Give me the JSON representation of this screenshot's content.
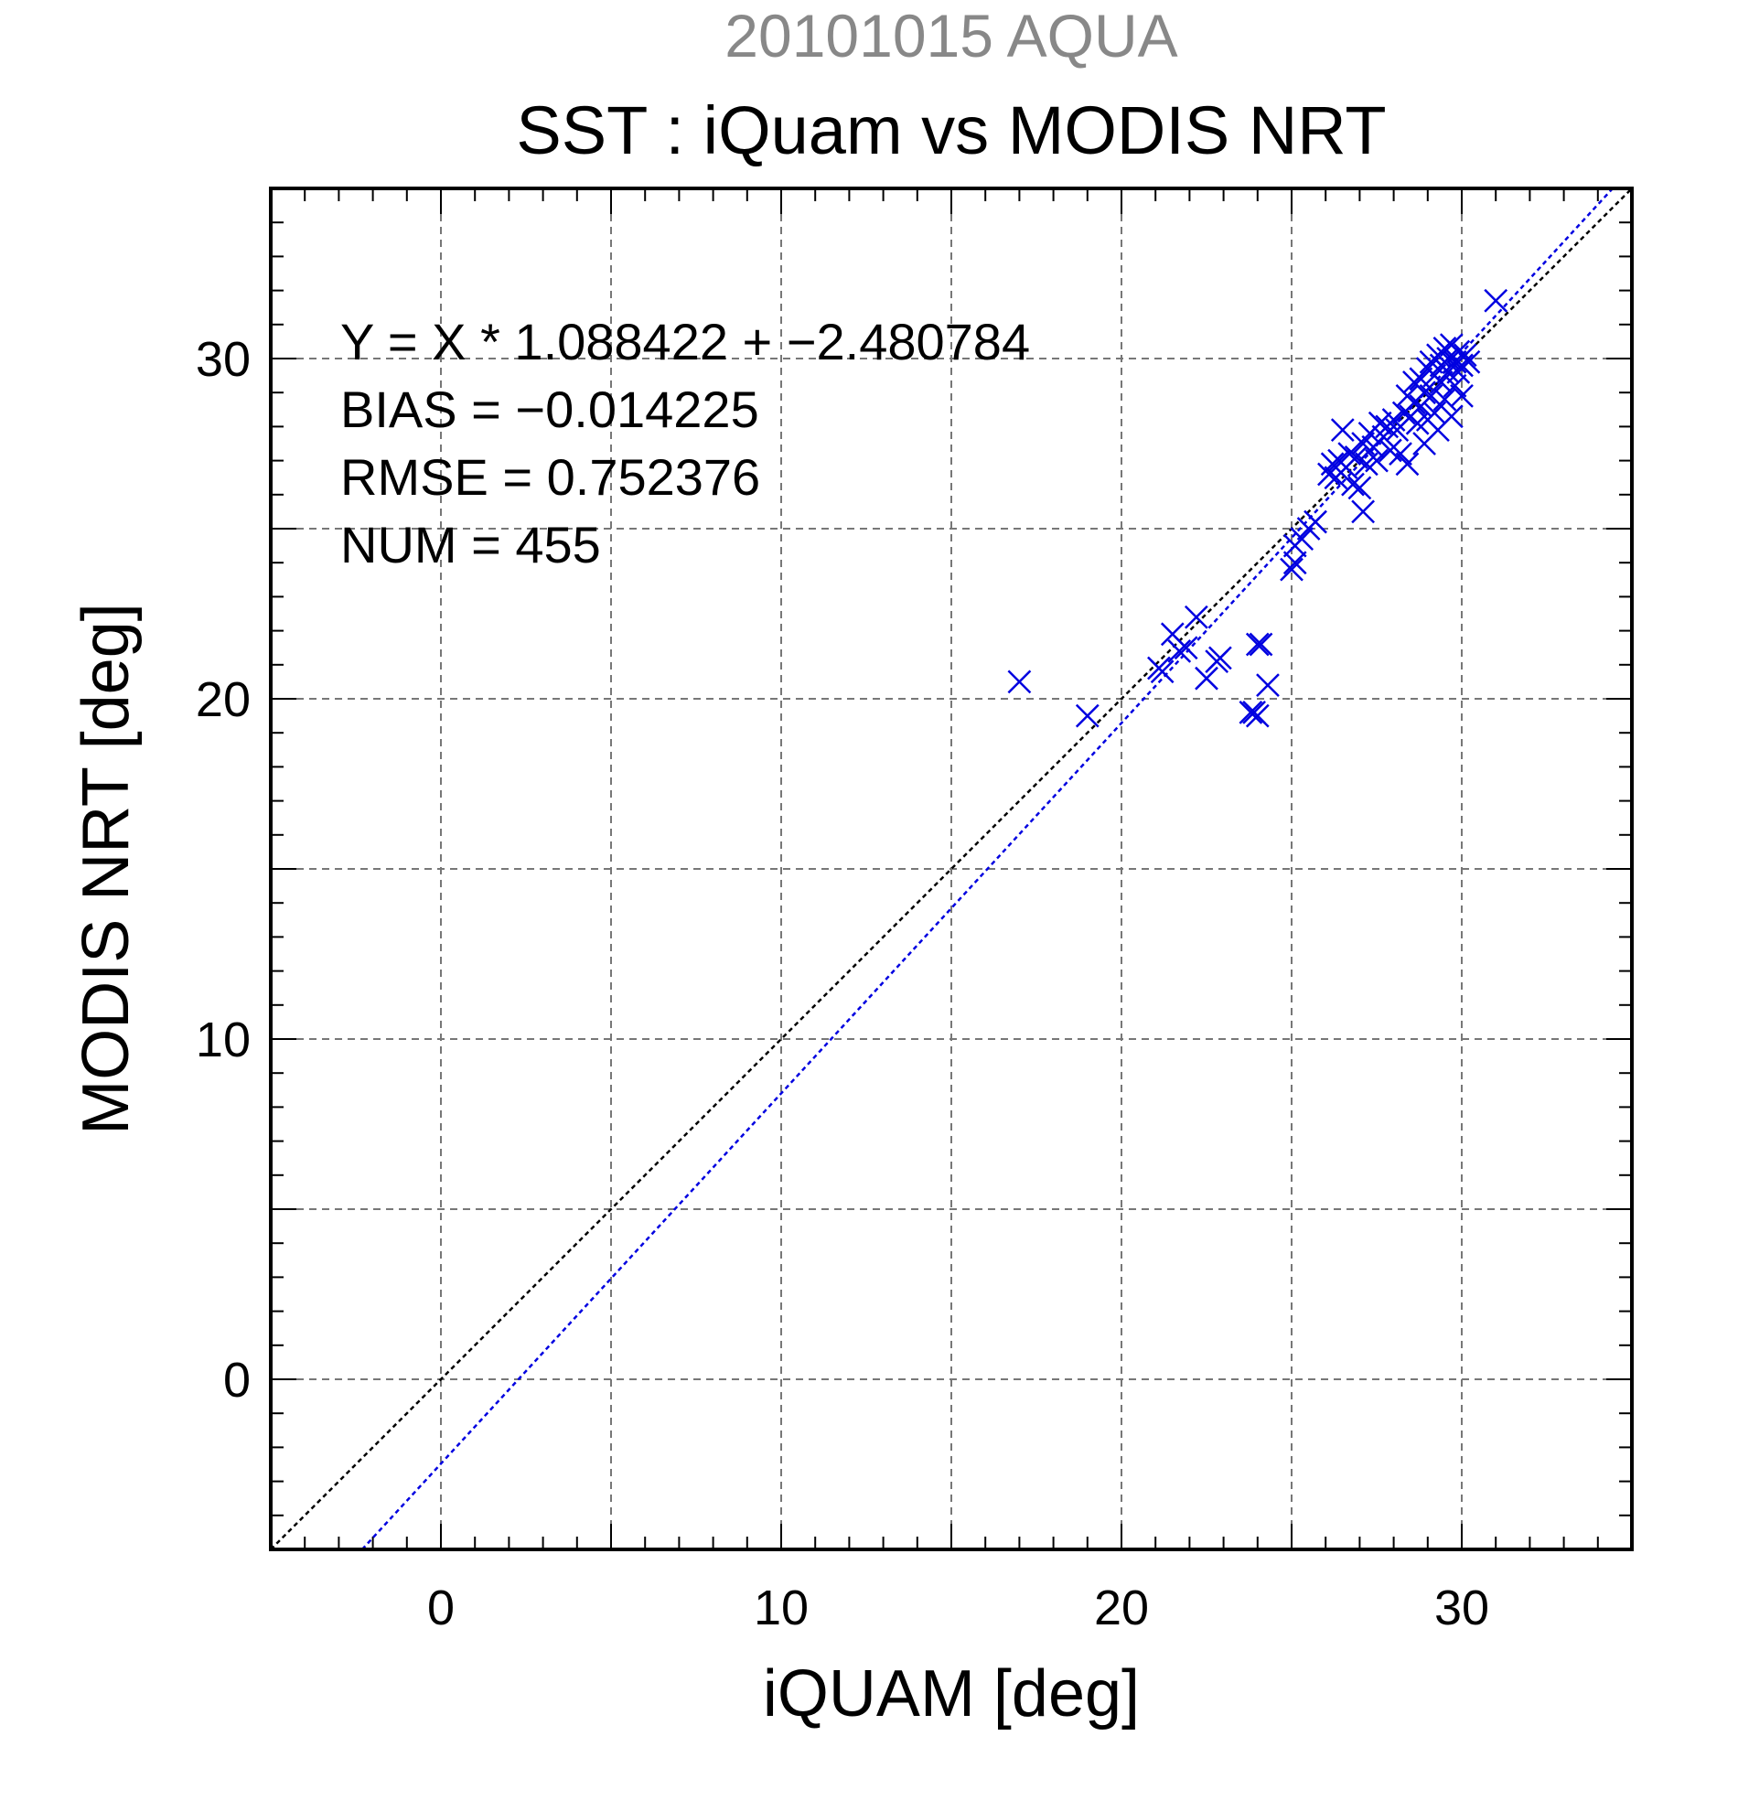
{
  "chart_data": {
    "type": "scatter",
    "title": "SST : iQuam vs MODIS NRT",
    "subtitle": "20101015 AQUA",
    "xlabel": "iQUAM [deg]",
    "ylabel": "MODIS NRT [deg]",
    "xlim": [
      -5,
      35
    ],
    "ylim": [
      -5,
      35
    ],
    "x_ticks": [
      0,
      10,
      20,
      30
    ],
    "y_ticks": [
      0,
      10,
      20,
      30
    ],
    "grid": true,
    "stats": {
      "fit": "Y = X * 1.088422 + −2.480784",
      "bias": "BIAS = −0.014225",
      "rmse": "RMSE = 0.752376",
      "num": "NUM = 455"
    },
    "lines": [
      {
        "kind": "identity",
        "slope": 1,
        "intercept": 0,
        "color": "#000000"
      },
      {
        "kind": "regression",
        "slope": 1.088422,
        "intercept": -2.480784,
        "color": "#0000e0"
      }
    ],
    "marker_color": "#0000e0",
    "series": [
      {
        "values": [
          [
            17.0,
            20.5
          ],
          [
            19.0,
            19.5
          ],
          [
            21.1,
            20.9
          ],
          [
            21.2,
            20.8
          ],
          [
            21.5,
            21.9
          ],
          [
            21.7,
            21.4
          ],
          [
            21.9,
            21.5
          ],
          [
            22.2,
            22.4
          ],
          [
            22.5,
            20.6
          ],
          [
            22.8,
            21.1
          ],
          [
            22.9,
            21.2
          ],
          [
            23.8,
            19.6
          ],
          [
            23.9,
            19.6
          ],
          [
            24.0,
            19.5
          ],
          [
            24.0,
            21.6
          ],
          [
            24.1,
            21.6
          ],
          [
            24.3,
            20.4
          ],
          [
            25.0,
            23.8
          ],
          [
            25.1,
            24.0
          ],
          [
            25.1,
            24.5
          ],
          [
            25.3,
            24.7
          ],
          [
            25.5,
            25.0
          ],
          [
            25.7,
            25.2
          ],
          [
            26.1,
            26.6
          ],
          [
            26.2,
            26.9
          ],
          [
            26.3,
            26.5
          ],
          [
            26.4,
            27.0
          ],
          [
            26.5,
            27.9
          ],
          [
            26.6,
            26.8
          ],
          [
            26.7,
            27.2
          ],
          [
            26.8,
            26.3
          ],
          [
            26.9,
            27.1
          ],
          [
            27.0,
            26.2
          ],
          [
            27.1,
            25.5
          ],
          [
            27.1,
            27.5
          ],
          [
            27.2,
            26.9
          ],
          [
            27.3,
            27.8
          ],
          [
            27.4,
            27.4
          ],
          [
            27.5,
            27.0
          ],
          [
            27.6,
            28.1
          ],
          [
            27.7,
            27.7
          ],
          [
            27.8,
            28.0
          ],
          [
            27.9,
            27.3
          ],
          [
            28.0,
            28.2
          ],
          [
            28.1,
            27.9
          ],
          [
            28.2,
            27.2
          ],
          [
            28.3,
            28.4
          ],
          [
            28.4,
            26.9
          ],
          [
            28.4,
            28.9
          ],
          [
            28.5,
            28.3
          ],
          [
            28.6,
            28.7
          ],
          [
            28.6,
            29.3
          ],
          [
            28.7,
            28.1
          ],
          [
            28.8,
            29.4
          ],
          [
            28.8,
            28.6
          ],
          [
            28.9,
            27.5
          ],
          [
            28.9,
            29.0
          ],
          [
            29.0,
            29.7
          ],
          [
            29.0,
            28.2
          ],
          [
            29.1,
            28.9
          ],
          [
            29.1,
            29.9
          ],
          [
            29.2,
            28.4
          ],
          [
            29.2,
            29.5
          ],
          [
            29.3,
            30.1
          ],
          [
            29.3,
            27.9
          ],
          [
            29.4,
            29.3
          ],
          [
            29.4,
            29.8
          ],
          [
            29.5,
            30.3
          ],
          [
            29.5,
            28.8
          ],
          [
            29.6,
            29.6
          ],
          [
            29.6,
            30.0
          ],
          [
            29.7,
            30.4
          ],
          [
            29.7,
            28.3
          ],
          [
            29.8,
            29.9
          ],
          [
            29.8,
            29.2
          ],
          [
            29.9,
            30.2
          ],
          [
            29.9,
            29.6
          ],
          [
            30.0,
            29.8
          ],
          [
            30.0,
            28.9
          ],
          [
            30.1,
            30.1
          ],
          [
            30.2,
            29.9
          ],
          [
            31.0,
            31.7
          ]
        ]
      }
    ]
  }
}
